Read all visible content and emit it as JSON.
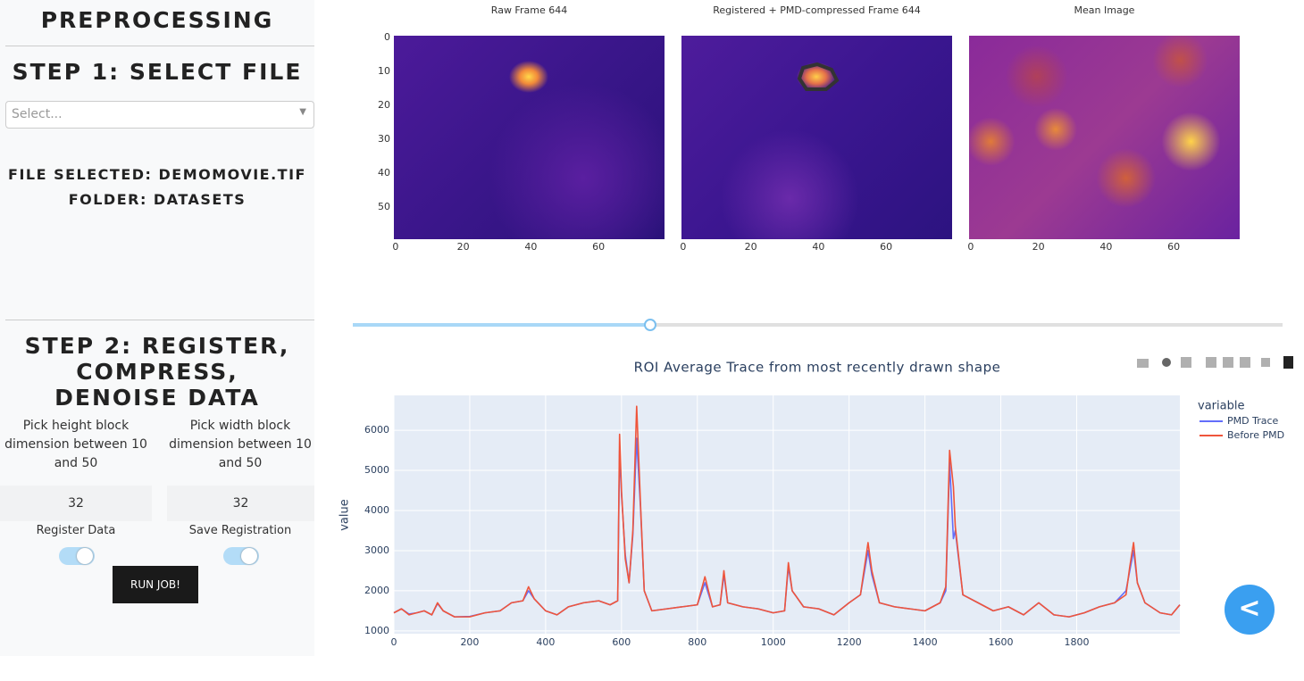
{
  "sidebar": {
    "title": "PREPROCESSING",
    "step1": "STEP 1: SELECT FILE",
    "select_placeholder": "Select...",
    "file_selected": "FILE SELECTED: DEMOMOVIE.TIF",
    "folder": "FOLDER: DATASETS",
    "step2": "STEP 2: REGISTER, COMPRESS, DENOISE DATA",
    "height_label": "Pick height block dimension between 10 and 50",
    "width_label": "Pick width block dimension between 10 and 50",
    "height_value": 32,
    "width_value": 32,
    "register_label": "Register Data",
    "save_label": "Save Registration",
    "run_button": "RUN JOB!"
  },
  "images": {
    "titles": [
      "Raw Frame 644",
      "Registered + PMD-compressed Frame 644",
      "Mean Image"
    ],
    "xlim": [
      -0.5,
      79.5
    ],
    "ylim": [
      -0.5,
      59.5
    ],
    "xticks": [
      0,
      20,
      40,
      60
    ],
    "yticks": [
      0,
      10,
      20,
      30,
      40,
      50
    ]
  },
  "chart_data": {
    "type": "line",
    "title": "ROI Average Trace from most recently drawn shape",
    "y_label": "value",
    "legend_title": "variable",
    "xlim": [
      0,
      2072
    ],
    "ylim": [
      930,
      6870
    ],
    "xticks": [
      0,
      200,
      400,
      600,
      800,
      1000,
      1200,
      1400,
      1600,
      1800
    ],
    "yticks": [
      1000,
      2000,
      3000,
      4000,
      5000,
      6000
    ],
    "grid": true,
    "x": [
      0,
      20,
      40,
      60,
      80,
      100,
      115,
      130,
      160,
      200,
      240,
      280,
      310,
      340,
      355,
      370,
      400,
      430,
      460,
      500,
      540,
      570,
      590,
      595,
      600,
      610,
      620,
      630,
      640,
      650,
      660,
      680,
      720,
      760,
      800,
      820,
      840,
      860,
      870,
      880,
      920,
      960,
      1000,
      1030,
      1040,
      1050,
      1080,
      1120,
      1160,
      1200,
      1230,
      1250,
      1260,
      1280,
      1320,
      1360,
      1400,
      1440,
      1455,
      1465,
      1475,
      1480,
      1500,
      1540,
      1580,
      1620,
      1660,
      1700,
      1740,
      1780,
      1820,
      1860,
      1900,
      1930,
      1940,
      1950,
      1960,
      1980,
      2020,
      2050,
      2072
    ],
    "series": [
      {
        "name": "PMD Trace",
        "color": "#636efa",
        "values": [
          1450,
          1550,
          1420,
          1450,
          1500,
          1400,
          1680,
          1500,
          1350,
          1360,
          1450,
          1500,
          1700,
          1750,
          2000,
          1800,
          1500,
          1400,
          1600,
          1700,
          1750,
          1650,
          1750,
          5500,
          4400,
          2900,
          2200,
          3400,
          5800,
          4100,
          2000,
          1500,
          1550,
          1600,
          1650,
          2200,
          1600,
          1650,
          2400,
          1700,
          1600,
          1550,
          1450,
          1500,
          2600,
          2000,
          1600,
          1550,
          1400,
          1700,
          1900,
          3000,
          2400,
          1700,
          1600,
          1550,
          1500,
          1700,
          2000,
          5200,
          3300,
          3500,
          1900,
          1700,
          1500,
          1600,
          1400,
          1700,
          1400,
          1350,
          1450,
          1600,
          1700,
          2000,
          2500,
          3000,
          2200,
          1700,
          1450,
          1400,
          1650
        ]
      },
      {
        "name": "Before PMD",
        "color": "#ef553b",
        "values": [
          1450,
          1550,
          1400,
          1450,
          1500,
          1400,
          1700,
          1500,
          1350,
          1350,
          1450,
          1500,
          1700,
          1750,
          2100,
          1800,
          1500,
          1400,
          1600,
          1700,
          1750,
          1650,
          1750,
          5900,
          4500,
          2800,
          2200,
          3500,
          6600,
          4200,
          2000,
          1500,
          1550,
          1600,
          1650,
          2350,
          1600,
          1650,
          2500,
          1700,
          1600,
          1550,
          1450,
          1500,
          2700,
          2000,
          1600,
          1550,
          1400,
          1700,
          1900,
          3200,
          2500,
          1700,
          1600,
          1550,
          1500,
          1700,
          2100,
          5500,
          4600,
          3600,
          1900,
          1700,
          1500,
          1600,
          1400,
          1700,
          1400,
          1350,
          1450,
          1600,
          1700,
          1900,
          2600,
          3200,
          2200,
          1700,
          1450,
          1400,
          1650
        ]
      }
    ]
  }
}
